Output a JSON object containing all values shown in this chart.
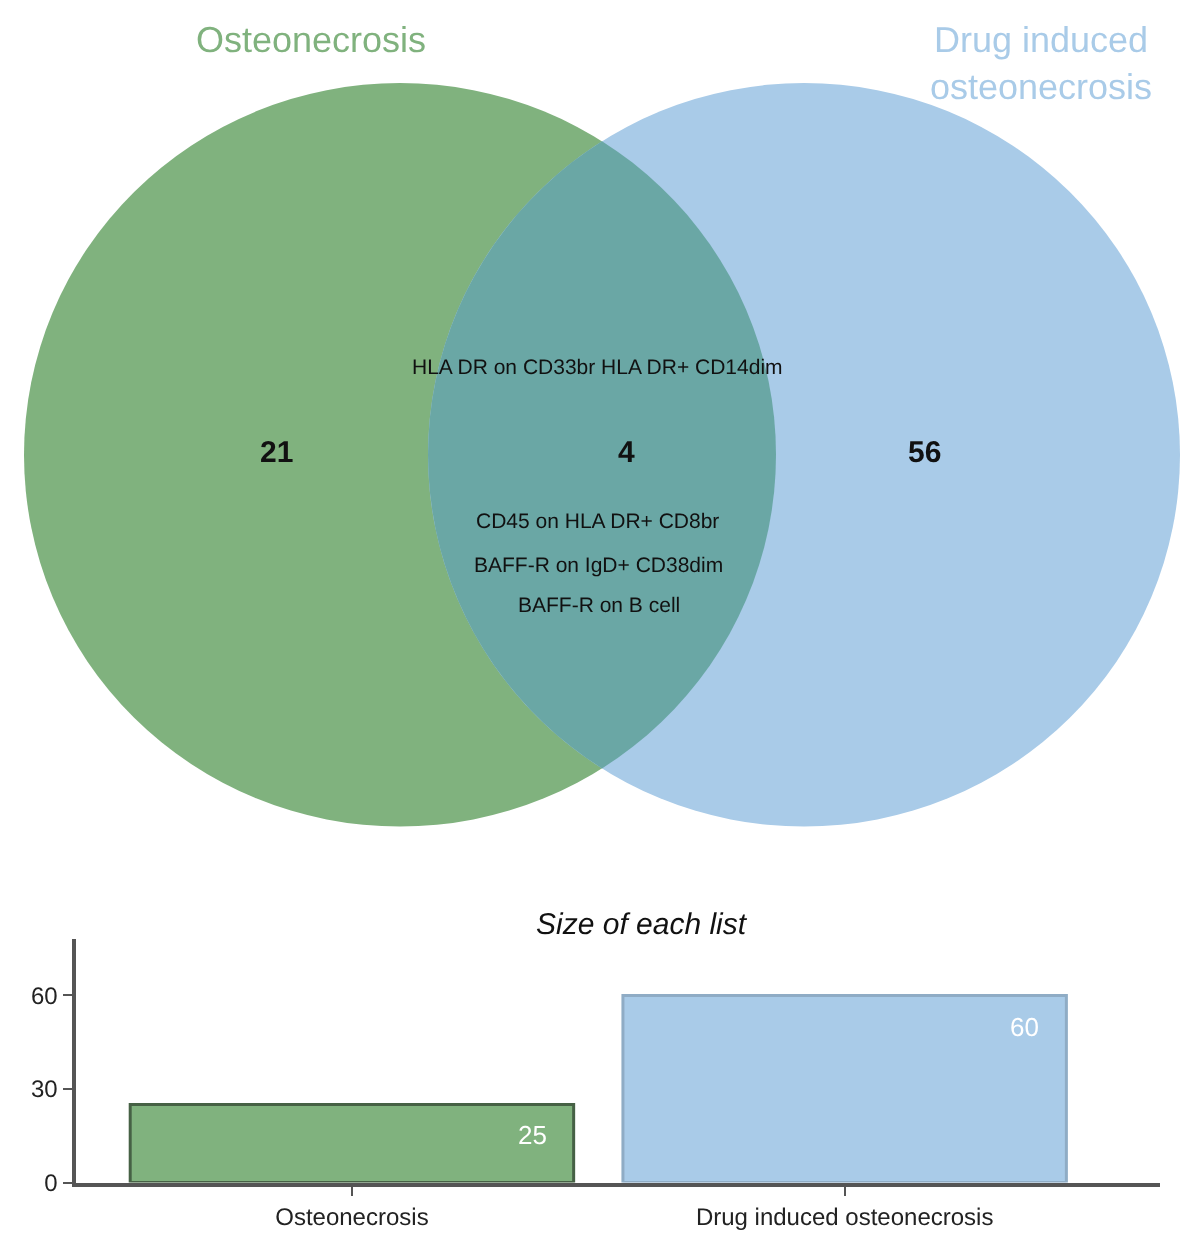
{
  "chart_data": [
    {
      "type": "other",
      "categories": [
        "Osteonecrosis",
        null,
        "Drug induced osteonecrosis"
      ],
      "colors": [
        "#80b27e",
        "#6aa7a5",
        "#a9cbe8"
      ],
      "values": [
        21,
        4,
        56
      ],
      "data_labels": true,
      "annotations": [
        "HLA DR on CD33br HLA DR+ CD14dim",
        "CD45 on HLA DR+ CD8br",
        "BAFF-R on IgD+ CD38dim",
        "BAFF-R on B cell"
      ]
    },
    {
      "type": "bar",
      "title": "Size of each list",
      "categories": [
        "Osteonecrosis",
        "Drug induced osteonecrosis"
      ],
      "values": [
        25,
        60
      ],
      "colors": [
        "#80b27e",
        "#a9cbe8"
      ],
      "ylim": [
        0,
        78
      ],
      "yticks": [
        0,
        30,
        60
      ],
      "data_labels": true
    }
  ]
}
